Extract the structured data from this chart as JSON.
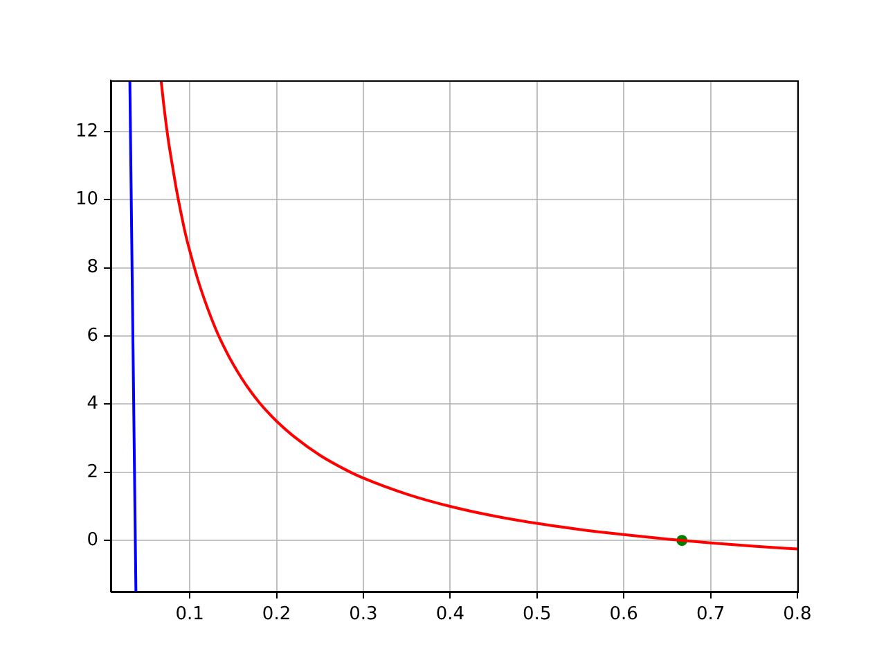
{
  "chart_data": {
    "type": "line",
    "xlim": [
      0.009,
      0.8
    ],
    "ylim": [
      -1.5,
      13.5
    ],
    "xticks": [
      0.1,
      0.2,
      0.3,
      0.4,
      0.5,
      0.6,
      0.7,
      0.8
    ],
    "yticks": [
      0,
      2,
      4,
      6,
      8,
      10,
      12
    ],
    "grid": true,
    "series": [
      {
        "type": "line",
        "color": "#0000ff",
        "x": [
          0.031,
          0.038
        ],
        "values": [
          13.5,
          -1.5
        ]
      },
      {
        "type": "line",
        "color": "#ff0000",
        "x": [
          0.067,
          0.07,
          0.075,
          0.08,
          0.085,
          0.09,
          0.095,
          0.1,
          0.11,
          0.12,
          0.13,
          0.14,
          0.15,
          0.16,
          0.17,
          0.18,
          0.19,
          0.2,
          0.22,
          0.25,
          0.28,
          0.3,
          0.35,
          0.4,
          0.45,
          0.5,
          0.55,
          0.6,
          0.65,
          0.7,
          0.75,
          0.8
        ],
        "values": [
          13.5,
          12.8,
          11.8,
          11.0,
          10.25,
          9.6,
          9.0,
          8.5,
          7.6,
          6.85,
          6.2,
          5.65,
          5.17,
          4.75,
          4.38,
          4.05,
          3.76,
          3.5,
          3.05,
          2.5,
          2.07,
          1.83,
          1.36,
          1.0,
          0.72,
          0.5,
          0.32,
          0.17,
          0.04,
          -0.07,
          -0.17,
          -0.25
        ]
      },
      {
        "type": "scatter",
        "color": "#008000",
        "x": [
          0.667
        ],
        "values": [
          0
        ],
        "marker": "circle"
      }
    ]
  }
}
